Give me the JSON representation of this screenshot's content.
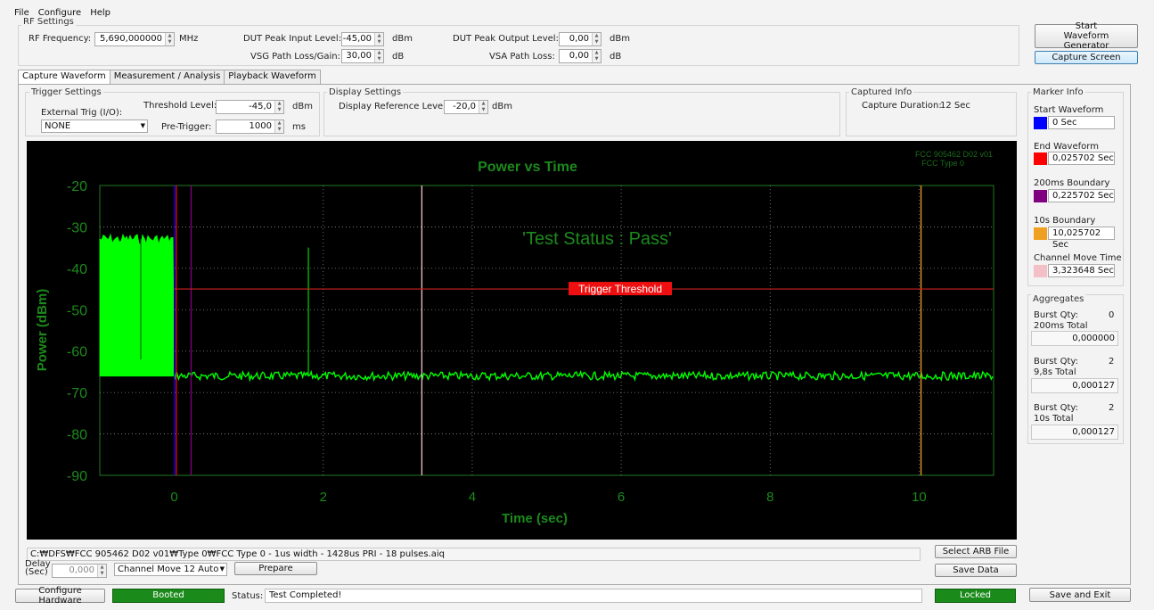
{
  "menu": [
    "File",
    "Configure",
    "Help"
  ],
  "rf_settings": {
    "title": "RF Settings",
    "rf_frequency_label": "RF Frequency:",
    "rf_frequency": "5,690,000000",
    "rf_frequency_unit": "MHz",
    "dut_peak_input_label": "DUT Peak Input Level:",
    "dut_peak_input": "-45,00",
    "dut_peak_input_unit": "dBm",
    "dut_peak_output_label": "DUT Peak Output Level:",
    "dut_peak_output": "0,00",
    "dut_peak_output_unit": "dBm",
    "vsg_path_label": "VSG Path Loss/Gain:",
    "vsg_path": "30,00",
    "vsg_path_unit": "dB",
    "vsa_path_label": "VSA Path Loss:",
    "vsa_path": "0,00",
    "vsa_path_unit": "dB"
  },
  "buttons": {
    "start_waveform": "Start Waveform Generator",
    "capture_screen": "Capture Screen",
    "select_arb": "Select ARB File",
    "save_data": "Save Data",
    "prepare": "Prepare",
    "configure_hardware": "Configure Hardware",
    "save_exit": "Save and Exit"
  },
  "tabs": [
    "Capture Waveform",
    "Measurement / Analysis",
    "Playback Waveform"
  ],
  "trigger": {
    "title": "Trigger Settings",
    "ext_label": "External Trig (I/O):",
    "ext_value": "NONE",
    "threshold_label": "Threshold Level:",
    "threshold_value": "-45,0",
    "threshold_unit": "dBm",
    "pretrigger_label": "Pre-Trigger:",
    "pretrigger_value": "1000",
    "pretrigger_unit": "ms"
  },
  "display": {
    "title": "Display Settings",
    "ref_label": "Display Reference Level:",
    "ref_value": "-20,0",
    "ref_unit": "dBm"
  },
  "captured": {
    "title": "Captured Info",
    "duration_label": "Capture Duration:",
    "duration_value": "12 Sec"
  },
  "marker": {
    "title": "Marker Info",
    "items": [
      {
        "label": "Start Waveform",
        "value": "0 Sec",
        "color": "#0000ff"
      },
      {
        "label": "End Waveform",
        "value": "0,025702 Sec",
        "color": "#ff0000"
      },
      {
        "label": "200ms Boundary",
        "value": "0,225702 Sec",
        "color": "#800080"
      },
      {
        "label": "10s Boundary",
        "value": "10,025702 Sec",
        "color": "#f0a020"
      },
      {
        "label": "Channel Move Time",
        "value": "3,323648 Sec",
        "color": "#f4c0c8"
      }
    ]
  },
  "aggregates": {
    "title": "Aggregates",
    "rows": [
      {
        "qty_label": "Burst Qty:",
        "qty": "0",
        "total_label": "200ms Total",
        "total": "0,000000"
      },
      {
        "qty_label": "Burst Qty:",
        "qty": "2",
        "total_label": "9,8s Total",
        "total": "0,000127"
      },
      {
        "qty_label": "Burst Qty:",
        "qty": "2",
        "total_label": "10s Total",
        "total": "0,000127"
      }
    ]
  },
  "chart_data": {
    "type": "line",
    "title": "Power vs Time",
    "xlabel": "Time (sec)",
    "ylabel": "Power (dBm)",
    "xlim": [
      -1,
      11
    ],
    "ylim": [
      -90,
      -20
    ],
    "xticks": [
      0,
      2,
      4,
      6,
      8,
      10
    ],
    "yticks": [
      -20,
      -30,
      -40,
      -50,
      -60,
      -70,
      -80,
      -90
    ],
    "corner_note_1": "FCC 905462 D02 v01",
    "corner_note_2": "FCC Type 0",
    "status_text": "'Test Status : Pass'",
    "threshold_label": "Trigger Threshold",
    "threshold_level": -45,
    "series": [
      {
        "name": "",
        "color": "#00ff00",
        "noise_floor": -66,
        "pre_burst_level": -33,
        "pre_burst_range": [
          -1,
          0
        ],
        "bursts": [
          {
            "x": 1.8,
            "y": -35
          }
        ]
      }
    ],
    "markers": [
      {
        "x": 0,
        "color": "#0000ff"
      },
      {
        "x": 0.025702,
        "color": "#ff0000"
      },
      {
        "x": 0.225702,
        "color": "#800080"
      },
      {
        "x": 3.323648,
        "color": "#f4c0c8"
      },
      {
        "x": 10.025702,
        "color": "#f0a020"
      }
    ]
  },
  "file_path": "C:₩DFS₩FCC 905462 D02 v01₩Type 0₩FCC Type 0 - 1us width - 1428us PRI - 18 pulses.aiq",
  "delay": {
    "label1": "Delay",
    "label2": "(Sec)",
    "value": "0,000"
  },
  "channel_move": "Channel Move 12 Auto",
  "status": {
    "booted": "Booted",
    "label": "Status:",
    "text": "Test Completed!",
    "locked": "Locked"
  }
}
